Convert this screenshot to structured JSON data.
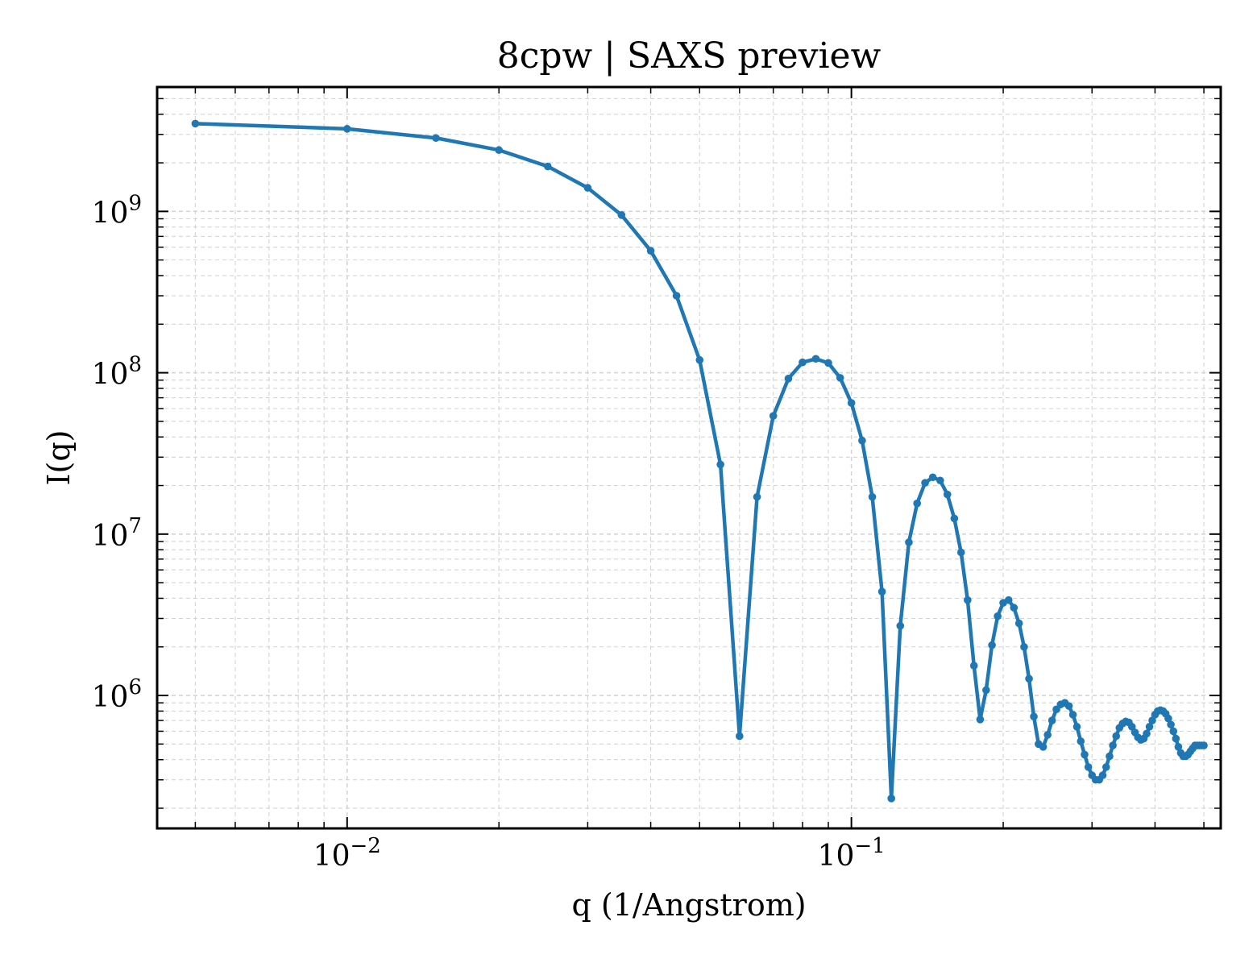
{
  "chart_data": {
    "type": "line",
    "title": "8cpw | SAXS preview",
    "xlabel": "q (1/Angstrom)",
    "ylabel": "I(q)",
    "xscale": "log",
    "yscale": "log",
    "xlim": [
      0.0042,
      0.54
    ],
    "ylim": [
      150000,
      5900000000
    ],
    "grid": true,
    "legend": "none",
    "line_color": "#1f77b4",
    "x_ticks": [
      {
        "value": 0.01,
        "base": "10",
        "exp": "−2"
      },
      {
        "value": 0.1,
        "base": "10",
        "exp": "−1"
      }
    ],
    "y_ticks": [
      {
        "value": 1000000,
        "base": "10",
        "exp": "6"
      },
      {
        "value": 10000000,
        "base": "10",
        "exp": "7"
      },
      {
        "value": 100000000,
        "base": "10",
        "exp": "8"
      },
      {
        "value": 1000000000,
        "base": "10",
        "exp": "9"
      }
    ],
    "series": [
      {
        "x": [
          0.005,
          0.01,
          0.015,
          0.02,
          0.025,
          0.03,
          0.035,
          0.04,
          0.045,
          0.05,
          0.055,
          0.06,
          0.065,
          0.07,
          0.075,
          0.08,
          0.085,
          0.09,
          0.095,
          0.1,
          0.105,
          0.11,
          0.115,
          0.12,
          0.125,
          0.13,
          0.135,
          0.14,
          0.145,
          0.15,
          0.155,
          0.16,
          0.165,
          0.17,
          0.175,
          0.18,
          0.185,
          0.19,
          0.195,
          0.2,
          0.205,
          0.21,
          0.215,
          0.22,
          0.225,
          0.23,
          0.235,
          0.24,
          0.245,
          0.25,
          0.255,
          0.26,
          0.265,
          0.27,
          0.275,
          0.28,
          0.285,
          0.29,
          0.295,
          0.3,
          0.305,
          0.31,
          0.315,
          0.32,
          0.325,
          0.33,
          0.335,
          0.34,
          0.345,
          0.35,
          0.355,
          0.36,
          0.365,
          0.37,
          0.375,
          0.38,
          0.385,
          0.39,
          0.395,
          0.4,
          0.405,
          0.41,
          0.415,
          0.42,
          0.425,
          0.43,
          0.435,
          0.44,
          0.445,
          0.45,
          0.455,
          0.46,
          0.465,
          0.47,
          0.475,
          0.48,
          0.485,
          0.49,
          0.495,
          0.5
        ],
        "y": [
          3500000000,
          3250000000,
          2850000000,
          2400000000,
          1900000000,
          1400000000,
          950000000,
          570000000,
          300000000,
          120000000,
          27000000,
          560000,
          17000000,
          54000000,
          92000000,
          116000000,
          122000000,
          115000000,
          93000000,
          65000000,
          38000000,
          17000000,
          4400000,
          230000,
          2700000,
          8900000,
          15500000,
          20800000,
          22500000,
          21500000,
          17600000,
          12500000,
          7700000,
          3900000,
          1530000,
          710000,
          1080000,
          2050000,
          3100000,
          3750000,
          3900000,
          3500000,
          2800000,
          2000000,
          1270000,
          740000,
          500000,
          480000,
          570000,
          700000,
          820000,
          880000,
          900000,
          860000,
          760000,
          640000,
          520000,
          430000,
          360000,
          320000,
          300000,
          300000,
          320000,
          360000,
          420000,
          490000,
          560000,
          630000,
          670000,
          690000,
          680000,
          640000,
          590000,
          550000,
          530000,
          540000,
          580000,
          640000,
          700000,
          760000,
          800000,
          810000,
          800000,
          770000,
          720000,
          660000,
          600000,
          540000,
          480000,
          440000,
          420000,
          420000,
          430000,
          450000,
          470000,
          490000,
          490000,
          490000,
          490000,
          490000
        ]
      }
    ]
  }
}
